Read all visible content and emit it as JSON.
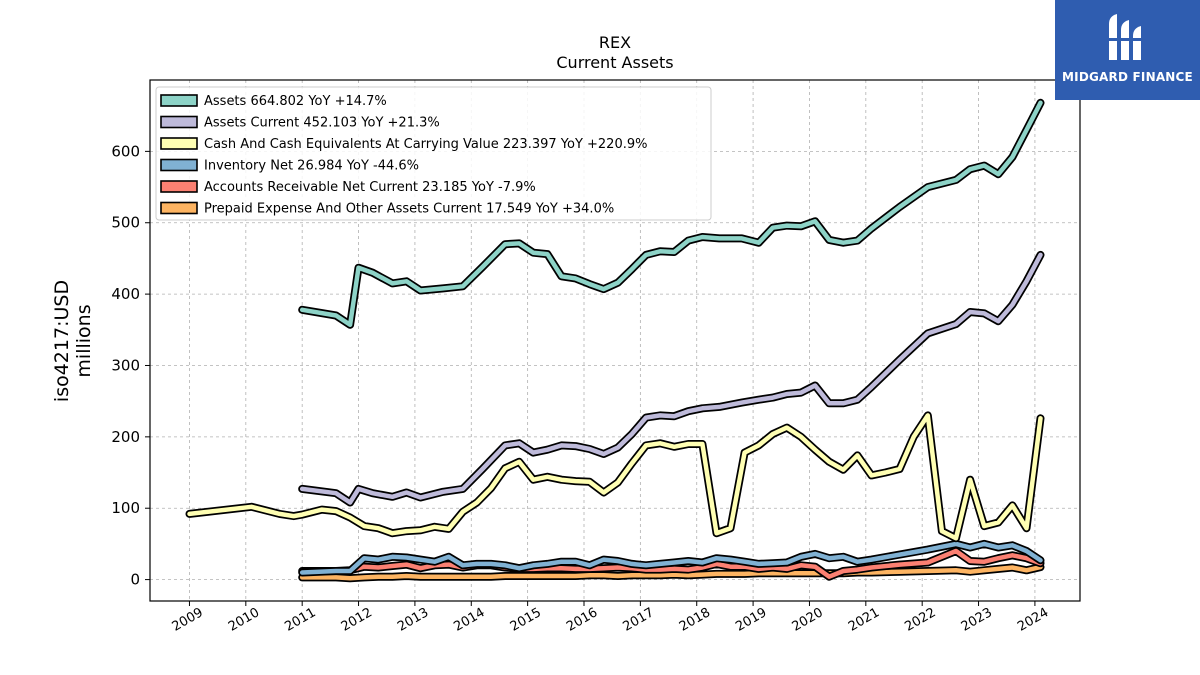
{
  "logo": {
    "text": "MIDGARD FINANCE"
  },
  "chart_data": {
    "type": "line",
    "title": "REX",
    "subtitle": "Current  Assets",
    "ylabel": "iso4217:USD\nmillions",
    "xlabel": "",
    "xlim": [
      2008.3,
      2024.8
    ],
    "ylim": [
      -30,
      700
    ],
    "x_ticks": [
      2009,
      2010,
      2011,
      2012,
      2013,
      2014,
      2015,
      2016,
      2017,
      2018,
      2019,
      2020,
      2021,
      2022,
      2023,
      2024
    ],
    "y_ticks": [
      0,
      100,
      200,
      300,
      400,
      500,
      600
    ],
    "grid": true,
    "legend_position": "top-left",
    "series": [
      {
        "name": "Assets  664.802 YoY +14.7%",
        "color": "#8dd3c7",
        "points": [
          [
            2011.0,
            378
          ],
          [
            2011.6,
            370
          ],
          [
            2011.85,
            357
          ],
          [
            2012.0,
            437
          ],
          [
            2012.25,
            430
          ],
          [
            2012.6,
            415
          ],
          [
            2012.85,
            418
          ],
          [
            2013.1,
            405
          ],
          [
            2013.5,
            408
          ],
          [
            2013.85,
            411
          ],
          [
            2014.2,
            438
          ],
          [
            2014.6,
            470
          ],
          [
            2014.85,
            471
          ],
          [
            2015.1,
            458
          ],
          [
            2015.35,
            456
          ],
          [
            2015.6,
            425
          ],
          [
            2015.85,
            422
          ],
          [
            2016.1,
            414
          ],
          [
            2016.35,
            407
          ],
          [
            2016.6,
            416
          ],
          [
            2016.85,
            435
          ],
          [
            2017.1,
            455
          ],
          [
            2017.35,
            460
          ],
          [
            2017.6,
            459
          ],
          [
            2017.85,
            475
          ],
          [
            2018.1,
            480
          ],
          [
            2018.4,
            478
          ],
          [
            2018.8,
            478
          ],
          [
            2019.1,
            472
          ],
          [
            2019.35,
            493
          ],
          [
            2019.6,
            496
          ],
          [
            2019.85,
            495
          ],
          [
            2020.1,
            502
          ],
          [
            2020.35,
            476
          ],
          [
            2020.6,
            472
          ],
          [
            2020.85,
            475
          ],
          [
            2021.1,
            492
          ],
          [
            2021.6,
            522
          ],
          [
            2022.1,
            550
          ],
          [
            2022.6,
            560
          ],
          [
            2022.85,
            575
          ],
          [
            2023.1,
            580
          ],
          [
            2023.35,
            568
          ],
          [
            2023.6,
            592
          ],
          [
            2023.85,
            630
          ],
          [
            2024.1,
            668
          ]
        ]
      },
      {
        "name": "Assets Current  452.103 YoY +21.3%",
        "color": "#bebada",
        "points": [
          [
            2011.0,
            127
          ],
          [
            2011.6,
            121
          ],
          [
            2011.85,
            108
          ],
          [
            2012.0,
            127
          ],
          [
            2012.25,
            121
          ],
          [
            2012.6,
            116
          ],
          [
            2012.85,
            122
          ],
          [
            2013.1,
            115
          ],
          [
            2013.5,
            123
          ],
          [
            2013.85,
            127
          ],
          [
            2014.2,
            155
          ],
          [
            2014.6,
            188
          ],
          [
            2014.85,
            191
          ],
          [
            2015.1,
            178
          ],
          [
            2015.35,
            182
          ],
          [
            2015.6,
            188
          ],
          [
            2015.85,
            187
          ],
          [
            2016.1,
            183
          ],
          [
            2016.35,
            176
          ],
          [
            2016.6,
            185
          ],
          [
            2016.85,
            204
          ],
          [
            2017.1,
            227
          ],
          [
            2017.35,
            230
          ],
          [
            2017.6,
            229
          ],
          [
            2017.85,
            236
          ],
          [
            2018.1,
            240
          ],
          [
            2018.4,
            242
          ],
          [
            2018.8,
            248
          ],
          [
            2019.1,
            252
          ],
          [
            2019.35,
            255
          ],
          [
            2019.6,
            260
          ],
          [
            2019.85,
            262
          ],
          [
            2020.1,
            272
          ],
          [
            2020.35,
            247
          ],
          [
            2020.6,
            247
          ],
          [
            2020.85,
            252
          ],
          [
            2021.1,
            270
          ],
          [
            2021.6,
            308
          ],
          [
            2022.1,
            345
          ],
          [
            2022.6,
            358
          ],
          [
            2022.85,
            375
          ],
          [
            2023.1,
            373
          ],
          [
            2023.35,
            362
          ],
          [
            2023.6,
            385
          ],
          [
            2023.85,
            418
          ],
          [
            2024.1,
            455
          ]
        ]
      },
      {
        "name": "Cash And Cash Equivalents At Carrying Value  223.397 YoY +220.9%",
        "color": "#ffffb3",
        "points": [
          [
            2009.0,
            92
          ],
          [
            2010.1,
            102
          ],
          [
            2010.6,
            92
          ],
          [
            2010.85,
            89
          ],
          [
            2011.0,
            91
          ],
          [
            2011.35,
            98
          ],
          [
            2011.6,
            96
          ],
          [
            2011.85,
            87
          ],
          [
            2012.1,
            75
          ],
          [
            2012.35,
            72
          ],
          [
            2012.6,
            65
          ],
          [
            2012.85,
            68
          ],
          [
            2013.1,
            69
          ],
          [
            2013.35,
            74
          ],
          [
            2013.6,
            71
          ],
          [
            2013.85,
            95
          ],
          [
            2014.1,
            108
          ],
          [
            2014.35,
            128
          ],
          [
            2014.6,
            156
          ],
          [
            2014.85,
            165
          ],
          [
            2015.1,
            140
          ],
          [
            2015.35,
            144
          ],
          [
            2015.6,
            140
          ],
          [
            2015.85,
            138
          ],
          [
            2016.1,
            137
          ],
          [
            2016.35,
            122
          ],
          [
            2016.6,
            136
          ],
          [
            2016.85,
            163
          ],
          [
            2017.1,
            188
          ],
          [
            2017.35,
            191
          ],
          [
            2017.6,
            186
          ],
          [
            2017.85,
            190
          ],
          [
            2018.1,
            190
          ],
          [
            2018.35,
            65
          ],
          [
            2018.6,
            72
          ],
          [
            2018.85,
            178
          ],
          [
            2019.1,
            188
          ],
          [
            2019.35,
            204
          ],
          [
            2019.6,
            213
          ],
          [
            2019.85,
            200
          ],
          [
            2020.1,
            182
          ],
          [
            2020.35,
            165
          ],
          [
            2020.6,
            154
          ],
          [
            2020.85,
            174
          ],
          [
            2021.1,
            146
          ],
          [
            2021.35,
            150
          ],
          [
            2021.6,
            155
          ],
          [
            2021.85,
            200
          ],
          [
            2022.1,
            230
          ],
          [
            2022.35,
            68
          ],
          [
            2022.6,
            58
          ],
          [
            2022.85,
            140
          ],
          [
            2023.1,
            75
          ],
          [
            2023.35,
            80
          ],
          [
            2023.6,
            104
          ],
          [
            2023.85,
            72
          ],
          [
            2024.1,
            226
          ]
        ]
      },
      {
        "name": "Inventory Net  26.984 YoY -44.6%",
        "color": "#80b1d3",
        "points": [
          [
            2011.0,
            10
          ],
          [
            2011.6,
            12
          ],
          [
            2011.85,
            12
          ],
          [
            2012.1,
            30
          ],
          [
            2012.35,
            28
          ],
          [
            2012.6,
            32
          ],
          [
            2012.85,
            31
          ],
          [
            2013.1,
            28
          ],
          [
            2013.35,
            25
          ],
          [
            2013.6,
            32
          ],
          [
            2013.85,
            20
          ],
          [
            2014.1,
            22
          ],
          [
            2014.35,
            22
          ],
          [
            2014.6,
            20
          ],
          [
            2014.85,
            16
          ],
          [
            2015.1,
            20
          ],
          [
            2015.35,
            22
          ],
          [
            2015.6,
            25
          ],
          [
            2015.85,
            25
          ],
          [
            2016.1,
            20
          ],
          [
            2016.35,
            28
          ],
          [
            2016.6,
            26
          ],
          [
            2016.85,
            22
          ],
          [
            2017.1,
            20
          ],
          [
            2017.35,
            22
          ],
          [
            2017.6,
            24
          ],
          [
            2017.85,
            26
          ],
          [
            2018.1,
            24
          ],
          [
            2018.35,
            30
          ],
          [
            2018.6,
            28
          ],
          [
            2018.85,
            25
          ],
          [
            2019.1,
            22
          ],
          [
            2019.35,
            23
          ],
          [
            2019.6,
            24
          ],
          [
            2019.85,
            32
          ],
          [
            2020.1,
            36
          ],
          [
            2020.35,
            30
          ],
          [
            2020.6,
            32
          ],
          [
            2020.85,
            25
          ],
          [
            2021.1,
            28
          ],
          [
            2021.6,
            35
          ],
          [
            2022.1,
            42
          ],
          [
            2022.6,
            50
          ],
          [
            2022.85,
            45
          ],
          [
            2023.1,
            50
          ],
          [
            2023.35,
            45
          ],
          [
            2023.6,
            48
          ],
          [
            2023.85,
            40
          ],
          [
            2024.1,
            27
          ]
        ]
      },
      {
        "name": "Accounts Receivable Net Current  23.185 YoY -7.9%",
        "color": "#fb8072",
        "points": [
          [
            2011.0,
            12
          ],
          [
            2011.6,
            12
          ],
          [
            2011.85,
            13
          ],
          [
            2012.1,
            18
          ],
          [
            2012.35,
            17
          ],
          [
            2012.6,
            19
          ],
          [
            2012.85,
            21
          ],
          [
            2013.1,
            16
          ],
          [
            2013.35,
            20
          ],
          [
            2013.6,
            21
          ],
          [
            2013.85,
            17
          ],
          [
            2014.1,
            20
          ],
          [
            2014.35,
            20
          ],
          [
            2014.6,
            17
          ],
          [
            2014.85,
            15
          ],
          [
            2015.1,
            15
          ],
          [
            2015.35,
            16
          ],
          [
            2015.6,
            16
          ],
          [
            2015.85,
            15
          ],
          [
            2016.1,
            15
          ],
          [
            2016.35,
            16
          ],
          [
            2016.6,
            17
          ],
          [
            2016.85,
            16
          ],
          [
            2017.1,
            14
          ],
          [
            2017.35,
            14
          ],
          [
            2017.6,
            15
          ],
          [
            2017.85,
            14
          ],
          [
            2018.1,
            17
          ],
          [
            2018.35,
            22
          ],
          [
            2018.6,
            18
          ],
          [
            2018.85,
            18
          ],
          [
            2019.1,
            15
          ],
          [
            2019.35,
            17
          ],
          [
            2019.6,
            15
          ],
          [
            2019.85,
            20
          ],
          [
            2020.1,
            18
          ],
          [
            2020.35,
            4
          ],
          [
            2020.6,
            12
          ],
          [
            2020.85,
            14
          ],
          [
            2021.1,
            17
          ],
          [
            2021.6,
            21
          ],
          [
            2022.1,
            24
          ],
          [
            2022.6,
            40
          ],
          [
            2022.85,
            26
          ],
          [
            2023.1,
            25
          ],
          [
            2023.35,
            30
          ],
          [
            2023.6,
            34
          ],
          [
            2023.85,
            30
          ],
          [
            2024.1,
            23
          ]
        ]
      },
      {
        "name": "Prepaid Expense And Other Assets Current  17.549 YoY +34.0%",
        "color": "#fdb462",
        "points": [
          [
            2011.0,
            3
          ],
          [
            2011.6,
            3
          ],
          [
            2011.85,
            2
          ],
          [
            2012.1,
            3
          ],
          [
            2012.35,
            4
          ],
          [
            2012.6,
            4
          ],
          [
            2012.85,
            5
          ],
          [
            2013.1,
            4
          ],
          [
            2013.35,
            4
          ],
          [
            2013.6,
            4
          ],
          [
            2013.85,
            4
          ],
          [
            2014.1,
            4
          ],
          [
            2014.35,
            4
          ],
          [
            2014.6,
            5
          ],
          [
            2014.85,
            5
          ],
          [
            2015.1,
            5
          ],
          [
            2015.35,
            5
          ],
          [
            2015.6,
            5
          ],
          [
            2015.85,
            5
          ],
          [
            2016.1,
            6
          ],
          [
            2016.35,
            6
          ],
          [
            2016.6,
            5
          ],
          [
            2016.85,
            6
          ],
          [
            2017.1,
            6
          ],
          [
            2017.35,
            6
          ],
          [
            2017.6,
            7
          ],
          [
            2017.85,
            6
          ],
          [
            2018.1,
            7
          ],
          [
            2018.35,
            8
          ],
          [
            2018.6,
            8
          ],
          [
            2018.85,
            8
          ],
          [
            2019.1,
            9
          ],
          [
            2019.35,
            9
          ],
          [
            2019.6,
            9
          ],
          [
            2019.85,
            9
          ],
          [
            2020.1,
            9
          ],
          [
            2020.35,
            9
          ],
          [
            2020.6,
            9
          ],
          [
            2020.85,
            10
          ],
          [
            2021.1,
            10
          ],
          [
            2021.6,
            11
          ],
          [
            2022.1,
            12
          ],
          [
            2022.6,
            13
          ],
          [
            2022.85,
            11
          ],
          [
            2023.1,
            13
          ],
          [
            2023.35,
            15
          ],
          [
            2023.6,
            17
          ],
          [
            2023.85,
            13
          ],
          [
            2024.1,
            17.5
          ]
        ]
      }
    ]
  }
}
